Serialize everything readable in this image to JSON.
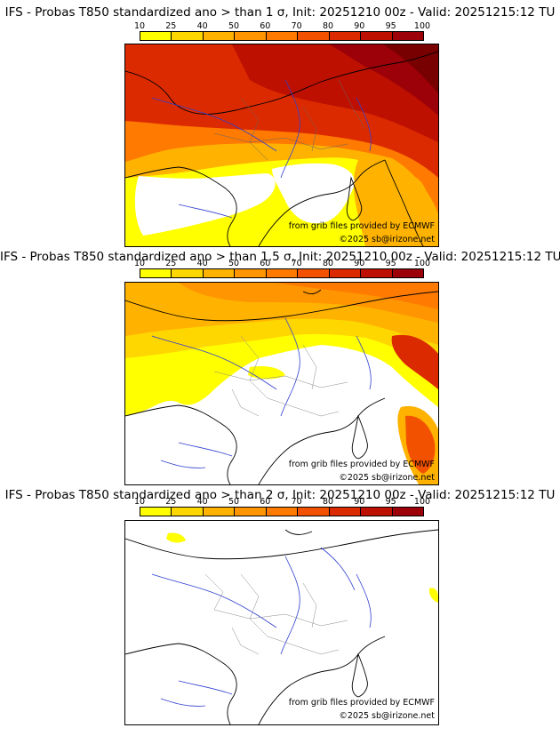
{
  "colorbar": {
    "ticks": [
      "10",
      "25",
      "40",
      "50",
      "60",
      "70",
      "80",
      "90",
      "95",
      "100"
    ],
    "colors": [
      "#ffff00",
      "#ffd700",
      "#ffb300",
      "#ff9500",
      "#ff7a00",
      "#f25200",
      "#dc2a00",
      "#be1000",
      "#9c0008",
      "#780000"
    ]
  },
  "panels": [
    {
      "title": "IFS - Probas T850  standardized ano > than 1 σ, Init: 20251210 00z - Valid: 20251215:12 TU",
      "credit_source": "from grib files provided by ECMWF",
      "credit_copyright": "©2025 sb@irizone.net"
    },
    {
      "title": "IFS - Probas T850  standardized ano > than 1.5 σ, Init: 20251210 00z - Valid: 20251215:12 TU",
      "credit_source": "from grib files provided by ECMWF",
      "credit_copyright": "©2025 sb@irizone.net"
    },
    {
      "title": "IFS - Probas T850  standardized ano > than 2 σ, Init: 20251210 00z - Valid: 20251215:12 TU",
      "credit_source": "from grib files provided by ECMWF",
      "credit_copyright": "©2025 sb@irizone.net"
    }
  ]
}
